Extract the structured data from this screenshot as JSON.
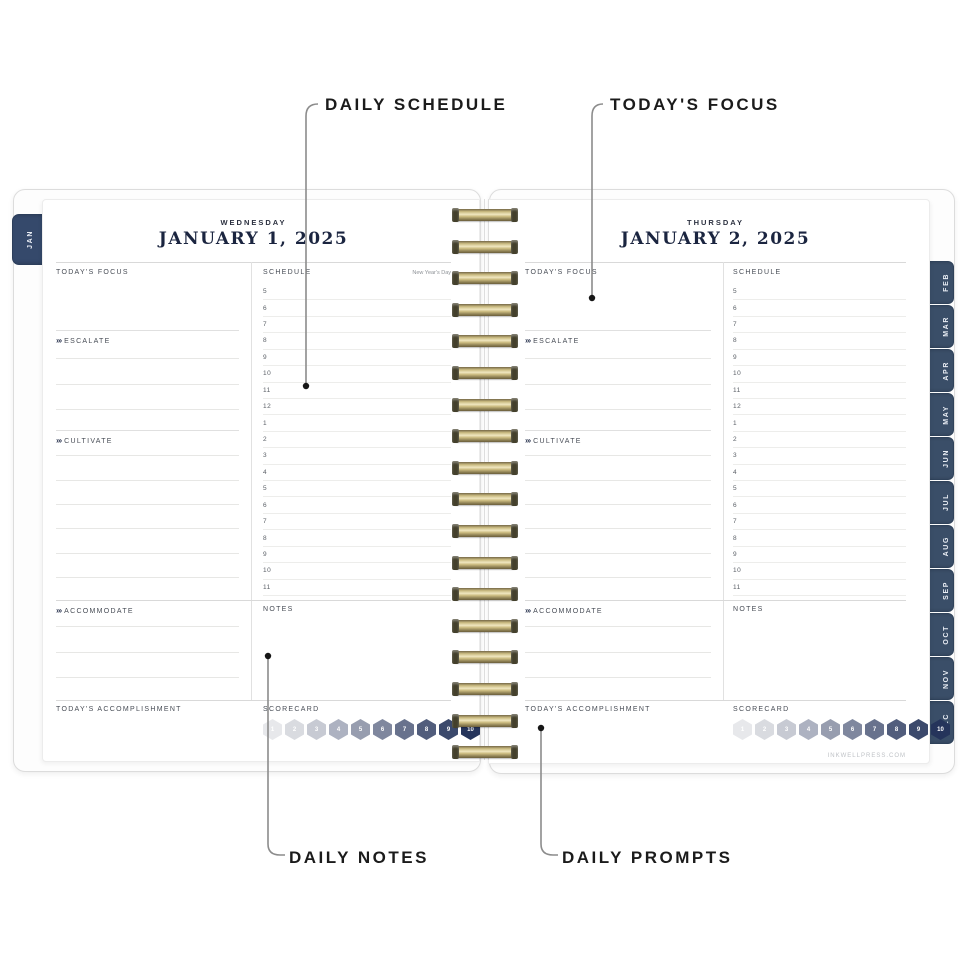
{
  "callouts": {
    "daily_schedule": "DAILY SCHEDULE",
    "todays_focus": "TODAY'S FOCUS",
    "daily_notes": "DAILY NOTES",
    "daily_prompts": "DAILY PROMPTS"
  },
  "left_tab": "JAN",
  "month_tabs": [
    "FEB",
    "MAR",
    "APR",
    "MAY",
    "JUN",
    "JUL",
    "AUG",
    "SEP",
    "OCT",
    "NOV",
    "DEC"
  ],
  "sections": {
    "todays_focus": "TODAY'S FOCUS",
    "escalate": "ESCALATE",
    "cultivate": "CULTIVATE",
    "accommodate": "ACCOMMODATE",
    "todays_accomplishment": "TODAY'S ACCOMPLISHMENT",
    "schedule": "SCHEDULE",
    "notes": "NOTES",
    "scorecard": "SCORECARD",
    "chevrons": "»›"
  },
  "pages": [
    {
      "weekday": "WEDNESDAY",
      "date": "JANUARY 1, 2025",
      "holiday": "New Year's Day"
    },
    {
      "weekday": "THURSDAY",
      "date": "JANUARY 2, 2025",
      "holiday": ""
    }
  ],
  "schedule_times": [
    "5",
    "6",
    "7",
    "8",
    "9",
    "10",
    "11",
    "12",
    "1",
    "2",
    "3",
    "4",
    "5",
    "6",
    "7",
    "8",
    "9",
    "10",
    "11"
  ],
  "scorecard": {
    "values": [
      "1",
      "2",
      "3",
      "4",
      "5",
      "6",
      "7",
      "8",
      "9",
      "10"
    ],
    "colors": [
      "#e7e8eb",
      "#d9dbe0",
      "#c7cad3",
      "#adb2c1",
      "#979daf",
      "#7f879e",
      "#68728d",
      "#515d7c",
      "#3b496c",
      "#25345b"
    ]
  },
  "footer": "INKWELLPRESS.COM",
  "colors": {
    "tab_navy": "#3a4e68",
    "date_navy": "#1b2540",
    "coil_gold": "#cdbd82"
  }
}
